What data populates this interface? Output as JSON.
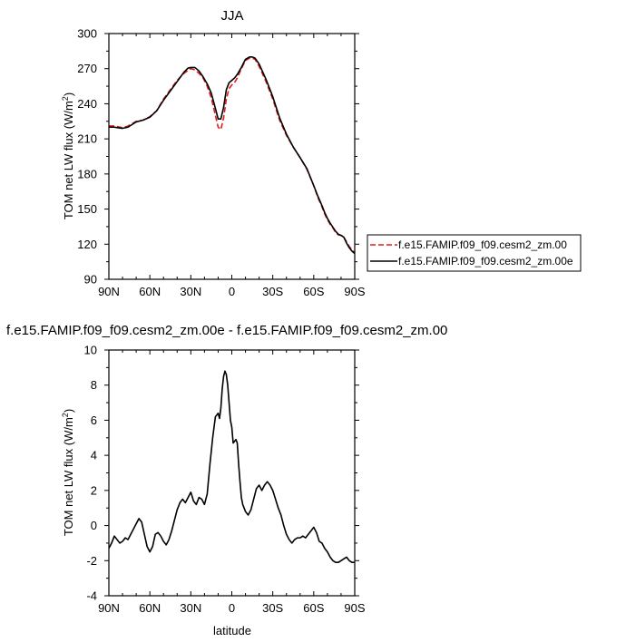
{
  "chart_data": [
    {
      "type": "line",
      "title": "JJA",
      "xlabel": "",
      "ylabel": "TOM net LW flux (W/m²)",
      "ylabel_unit_html": [
        "TOM net LW flux (W/m",
        "2",
        ")"
      ],
      "xlim": [
        -90,
        90
      ],
      "ylim": [
        90,
        300
      ],
      "xticks": [
        -90,
        -60,
        -30,
        0,
        30,
        60,
        90
      ],
      "xtick_labels": [
        "90N",
        "60N",
        "30N",
        "0",
        "30S",
        "60S",
        "90S"
      ],
      "yticks": [
        90,
        120,
        150,
        180,
        210,
        240,
        270,
        300
      ],
      "ytick_labels": [
        "90",
        "120",
        "150",
        "180",
        "210",
        "240",
        "270",
        "300"
      ],
      "legend": "outside-right",
      "series": [
        {
          "name": "f.e15.FAMIP.f09_f09.cesm2_zm.00",
          "color": "#e31a1c",
          "dash": "dashed",
          "x": [
            -90,
            -86,
            -80,
            -76,
            -70,
            -65,
            -60,
            -55,
            -50,
            -45,
            -40,
            -35,
            -32,
            -30,
            -27,
            -24,
            -21,
            -18,
            -15,
            -12,
            -10,
            -8,
            -6,
            -4,
            -2,
            0,
            2,
            4,
            7,
            10,
            13,
            15,
            17,
            20,
            25,
            30,
            35,
            40,
            45,
            50,
            55,
            60,
            63,
            66,
            68,
            70,
            72,
            74,
            76,
            78,
            80,
            82,
            84,
            86,
            88,
            90
          ],
          "y": [
            221,
            221,
            219.5,
            221,
            225,
            226,
            229,
            234,
            244,
            252,
            260,
            266,
            268.5,
            270,
            269,
            266,
            262,
            255,
            245,
            230,
            220,
            218,
            228,
            244,
            253,
            256,
            258,
            262,
            270,
            277,
            279,
            279,
            278,
            272,
            259,
            244,
            226,
            213,
            203,
            194,
            184,
            170,
            160,
            152,
            146,
            141,
            137,
            134,
            130,
            128,
            127.5,
            126,
            122,
            118,
            115,
            113
          ]
        },
        {
          "name": "f.e15.FAMIP.f09_f09.cesm2_zm.00e",
          "color": "#000000",
          "dash": "solid",
          "x": [
            -90,
            -86,
            -80,
            -76,
            -70,
            -65,
            -60,
            -55,
            -50,
            -45,
            -40,
            -35,
            -32,
            -30,
            -27,
            -24,
            -21,
            -18,
            -15,
            -12,
            -10,
            -8,
            -6,
            -4,
            -2,
            0,
            2,
            4,
            7,
            10,
            13,
            15,
            17,
            20,
            25,
            30,
            35,
            40,
            45,
            50,
            55,
            60,
            63,
            66,
            68,
            70,
            72,
            74,
            76,
            78,
            80,
            82,
            84,
            86,
            88,
            90
          ],
          "y": [
            220,
            220,
            219,
            220,
            224.5,
            226,
            228.5,
            234,
            243,
            251,
            259,
            267,
            270.5,
            271,
            271,
            268,
            263,
            257,
            249,
            236,
            227,
            227,
            237,
            252,
            258,
            260,
            262,
            265,
            271,
            278,
            280,
            280,
            279,
            274,
            261,
            246,
            228,
            214,
            203,
            194,
            184.5,
            170,
            161,
            153,
            147,
            142,
            138,
            134.5,
            131,
            128.5,
            127.5,
            126,
            121,
            117,
            114,
            112
          ]
        }
      ]
    },
    {
      "type": "line",
      "title": "f.e15.FAMIP.f09_f09.cesm2_zm.00e - f.e15.FAMIP.f09_f09.cesm2_zm.00",
      "xlabel": "latitude",
      "ylabel": "TOM net LW flux (W/m²)",
      "ylabel_unit_html": [
        "TOM net LW flux (W/m",
        "2",
        ")"
      ],
      "xlim": [
        -90,
        90
      ],
      "ylim": [
        -4,
        10
      ],
      "xticks": [
        -90,
        -60,
        -30,
        0,
        30,
        60,
        90
      ],
      "xtick_labels": [
        "90N",
        "60N",
        "30N",
        "0",
        "30S",
        "60S",
        "90S"
      ],
      "yticks": [
        -4,
        -2,
        0,
        2,
        4,
        6,
        8,
        10
      ],
      "ytick_labels": [
        "-4",
        "-2",
        "0",
        "2",
        "4",
        "6",
        "8",
        "10"
      ],
      "series": [
        {
          "color": "#000000",
          "dash": "solid",
          "x": [
            -90,
            -88,
            -86,
            -84,
            -82,
            -80,
            -78,
            -76,
            -74,
            -72,
            -70,
            -68,
            -66,
            -64,
            -62,
            -60,
            -58,
            -56,
            -54,
            -52,
            -50,
            -48,
            -46,
            -44,
            -42,
            -40,
            -38,
            -36,
            -34,
            -32,
            -30,
            -28,
            -26,
            -24,
            -22,
            -20,
            -18,
            -16,
            -14,
            -12,
            -10,
            -9,
            -8,
            -7,
            -6,
            -5,
            -4,
            -3,
            -2,
            -1,
            0,
            1,
            2,
            3,
            4,
            5,
            6,
            7,
            8,
            10,
            12,
            14,
            16,
            18,
            20,
            22,
            24,
            26,
            28,
            30,
            32,
            34,
            36,
            38,
            40,
            42,
            44,
            46,
            48,
            50,
            52,
            54,
            56,
            58,
            60,
            62,
            64,
            66,
            68,
            70,
            72,
            74,
            76,
            78,
            80,
            82,
            84,
            86,
            88,
            90
          ],
          "y": [
            -1.3,
            -1.0,
            -0.6,
            -0.8,
            -1.0,
            -0.9,
            -0.7,
            -0.8,
            -0.5,
            -0.2,
            0.1,
            0.4,
            0.2,
            -0.5,
            -1.2,
            -1.5,
            -1.2,
            -0.5,
            -0.4,
            -0.6,
            -0.9,
            -1.1,
            -0.8,
            -0.3,
            0.3,
            0.9,
            1.3,
            1.5,
            1.3,
            1.6,
            1.9,
            1.4,
            1.2,
            1.6,
            1.5,
            1.2,
            1.8,
            3.5,
            5.0,
            6.2,
            6.4,
            6.1,
            6.7,
            7.8,
            8.5,
            8.8,
            8.6,
            8.0,
            7.0,
            6.0,
            5.6,
            4.7,
            4.8,
            4.9,
            4.7,
            3.5,
            2.5,
            1.6,
            1.2,
            0.8,
            0.6,
            0.9,
            1.5,
            2.1,
            2.3,
            2.0,
            2.3,
            2.5,
            2.3,
            2.0,
            1.5,
            1.0,
            0.6,
            0.0,
            -0.5,
            -0.8,
            -1.0,
            -0.8,
            -0.7,
            -0.7,
            -0.6,
            -0.7,
            -0.5,
            -0.3,
            -0.1,
            -0.4,
            -0.9,
            -1.0,
            -1.3,
            -1.5,
            -1.8,
            -2.0,
            -2.1,
            -2.1,
            -2.0,
            -1.9,
            -1.8,
            -2.0,
            -2.1,
            -2.1
          ]
        }
      ]
    }
  ]
}
